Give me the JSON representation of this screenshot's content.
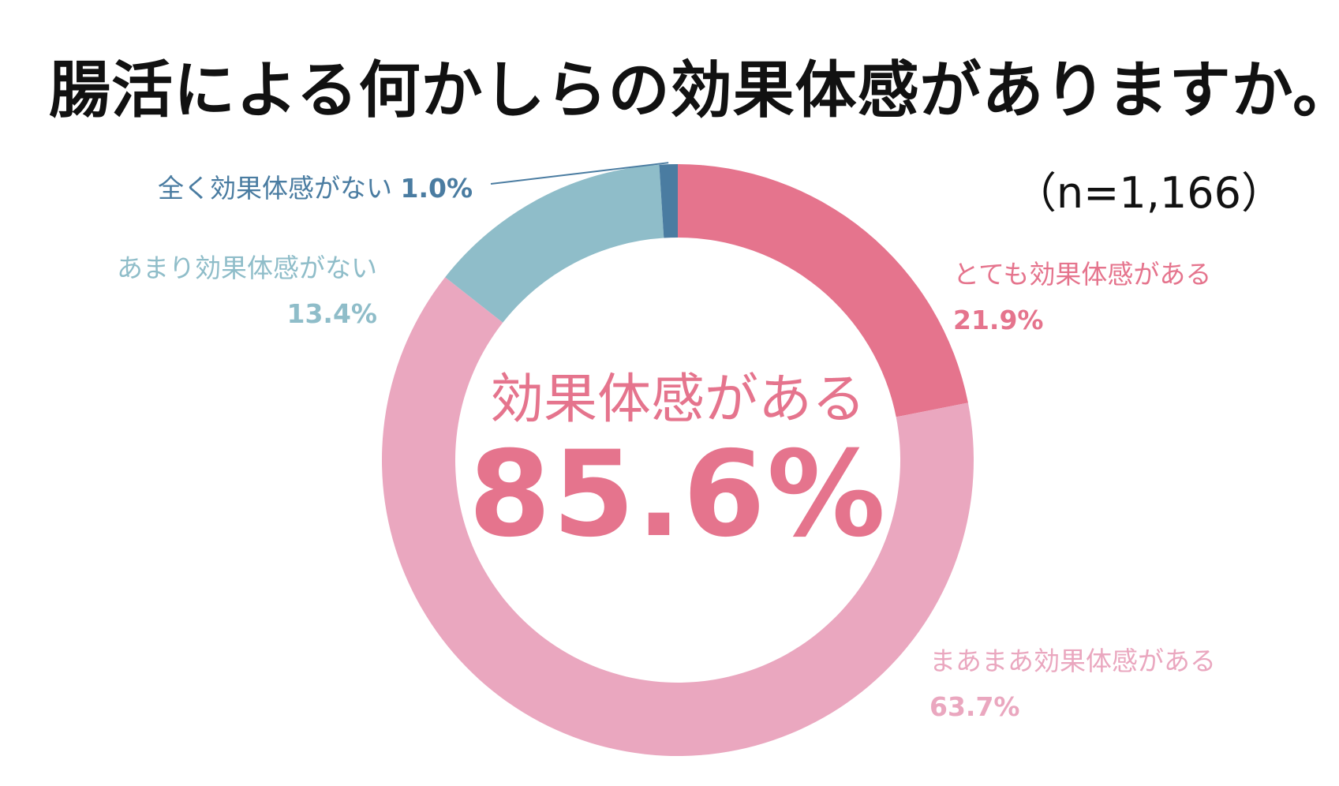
{
  "title": "腸活による何かしらの効果体感がありますか。",
  "sample_size": "（n=1,166）",
  "center": {
    "caption": "効果体感がある",
    "value": "85.6%"
  },
  "colors": {
    "very_some": "#e5748d",
    "some": "#eaa7bf",
    "little": "#8fbdc9",
    "none": "#4a7ca1",
    "title": "#111111"
  },
  "chart_data": {
    "type": "pie",
    "title": "腸活による何かしらの効果体感がありますか。",
    "categories": [
      "とても効果体感がある",
      "まあまあ効果体感がある",
      "あまり効果体感がない",
      "全く効果体感がない"
    ],
    "values": [
      21.9,
      63.7,
      13.4,
      1.0
    ],
    "labels": [
      "21.9%",
      "63.7%",
      "13.4%",
      "1.0%"
    ],
    "colors": [
      "#e5748d",
      "#eaa7bf",
      "#8fbdc9",
      "#4a7ca1"
    ],
    "donut": true
  }
}
